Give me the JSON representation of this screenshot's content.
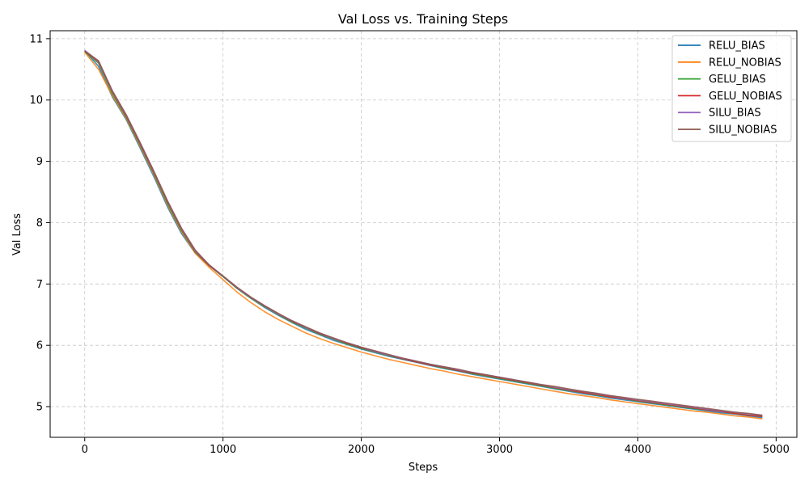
{
  "chart_data": {
    "type": "line",
    "title": "Val Loss vs. Training Steps",
    "xlabel": "Steps",
    "ylabel": "Val Loss",
    "xlim": [
      -250,
      5150
    ],
    "ylim": [
      4.5,
      11.13
    ],
    "xticks": [
      0,
      1000,
      2000,
      3000,
      4000,
      5000
    ],
    "yticks": [
      5,
      6,
      7,
      8,
      9,
      10,
      11
    ],
    "grid": true,
    "legend_position": "top-right",
    "x": [
      0,
      100,
      200,
      300,
      400,
      500,
      600,
      700,
      800,
      900,
      1000,
      1100,
      1200,
      1300,
      1400,
      1500,
      1600,
      1700,
      1800,
      1900,
      2000,
      2100,
      2200,
      2300,
      2400,
      2500,
      2600,
      2700,
      2800,
      2900,
      3000,
      3100,
      3200,
      3300,
      3400,
      3500,
      3600,
      3700,
      3800,
      3900,
      4000,
      4100,
      4200,
      4300,
      4400,
      4500,
      4600,
      4700,
      4800,
      4900
    ],
    "series": [
      {
        "name": "RELU_BIAS",
        "color": "#1f77b4",
        "values": [
          10.8,
          10.55,
          10.05,
          9.68,
          9.22,
          8.75,
          8.25,
          7.82,
          7.5,
          7.3,
          7.12,
          6.93,
          6.77,
          6.62,
          6.49,
          6.37,
          6.26,
          6.17,
          6.08,
          6.01,
          5.94,
          5.88,
          5.82,
          5.77,
          5.72,
          5.67,
          5.62,
          5.58,
          5.53,
          5.49,
          5.45,
          5.41,
          5.37,
          5.33,
          5.29,
          5.25,
          5.21,
          5.18,
          5.14,
          5.11,
          5.08,
          5.05,
          5.02,
          4.99,
          4.96,
          4.93,
          4.9,
          4.88,
          4.85,
          4.82
        ]
      },
      {
        "name": "RELU_NOBIAS",
        "color": "#ff7f0e",
        "values": [
          10.78,
          10.5,
          10.07,
          9.7,
          9.25,
          8.78,
          8.28,
          7.85,
          7.5,
          7.27,
          7.07,
          6.87,
          6.7,
          6.55,
          6.42,
          6.31,
          6.2,
          6.11,
          6.03,
          5.96,
          5.89,
          5.83,
          5.77,
          5.72,
          5.67,
          5.62,
          5.58,
          5.53,
          5.49,
          5.45,
          5.41,
          5.37,
          5.33,
          5.29,
          5.25,
          5.21,
          5.18,
          5.15,
          5.11,
          5.08,
          5.05,
          5.02,
          4.99,
          4.96,
          4.93,
          4.91,
          4.88,
          4.85,
          4.83,
          4.8
        ]
      },
      {
        "name": "GELU_BIAS",
        "color": "#2ca02c",
        "values": [
          10.79,
          10.6,
          10.1,
          9.72,
          9.27,
          8.8,
          8.3,
          7.87,
          7.52,
          7.3,
          7.12,
          6.93,
          6.77,
          6.63,
          6.5,
          6.38,
          6.28,
          6.18,
          6.1,
          6.02,
          5.95,
          5.89,
          5.83,
          5.78,
          5.73,
          5.68,
          5.63,
          5.59,
          5.54,
          5.5,
          5.46,
          5.42,
          5.38,
          5.34,
          5.3,
          5.26,
          5.23,
          5.19,
          5.16,
          5.13,
          5.09,
          5.06,
          5.03,
          5.0,
          4.97,
          4.95,
          4.92,
          4.89,
          4.86,
          4.84
        ]
      },
      {
        "name": "GELU_NOBIAS",
        "color": "#d62728",
        "values": [
          10.8,
          10.62,
          10.13,
          9.74,
          9.29,
          8.82,
          8.33,
          7.89,
          7.53,
          7.3,
          7.13,
          6.94,
          6.78,
          6.64,
          6.51,
          6.39,
          6.29,
          6.19,
          6.11,
          6.03,
          5.96,
          5.9,
          5.84,
          5.78,
          5.73,
          5.68,
          5.64,
          5.59,
          5.55,
          5.51,
          5.47,
          5.43,
          5.39,
          5.35,
          5.31,
          5.27,
          5.23,
          5.2,
          5.16,
          5.13,
          5.1,
          5.07,
          5.04,
          5.01,
          4.98,
          4.95,
          4.92,
          4.89,
          4.86,
          4.84
        ]
      },
      {
        "name": "SILU_BIAS",
        "color": "#9467bd",
        "values": [
          10.81,
          10.63,
          10.14,
          9.75,
          9.3,
          8.83,
          8.34,
          7.9,
          7.54,
          7.31,
          7.13,
          6.94,
          6.78,
          6.64,
          6.51,
          6.4,
          6.29,
          6.2,
          6.11,
          6.04,
          5.97,
          5.9,
          5.84,
          5.79,
          5.74,
          5.69,
          5.65,
          5.6,
          5.56,
          5.52,
          5.48,
          5.44,
          5.4,
          5.36,
          5.32,
          5.28,
          5.25,
          5.21,
          5.18,
          5.14,
          5.11,
          5.08,
          5.05,
          5.02,
          4.99,
          4.96,
          4.93,
          4.91,
          4.88,
          4.86
        ]
      },
      {
        "name": "SILU_NOBIAS",
        "color": "#8c564b",
        "values": [
          10.8,
          10.64,
          10.15,
          9.76,
          9.31,
          8.84,
          8.35,
          7.91,
          7.55,
          7.31,
          7.13,
          6.95,
          6.79,
          6.65,
          6.52,
          6.4,
          6.3,
          6.2,
          6.12,
          6.04,
          5.97,
          5.91,
          5.85,
          5.79,
          5.74,
          5.69,
          5.65,
          5.61,
          5.56,
          5.52,
          5.48,
          5.44,
          5.4,
          5.36,
          5.33,
          5.29,
          5.25,
          5.22,
          5.18,
          5.15,
          5.12,
          5.09,
          5.06,
          5.03,
          5.0,
          4.97,
          4.94,
          4.91,
          4.89,
          4.86
        ]
      }
    ]
  }
}
